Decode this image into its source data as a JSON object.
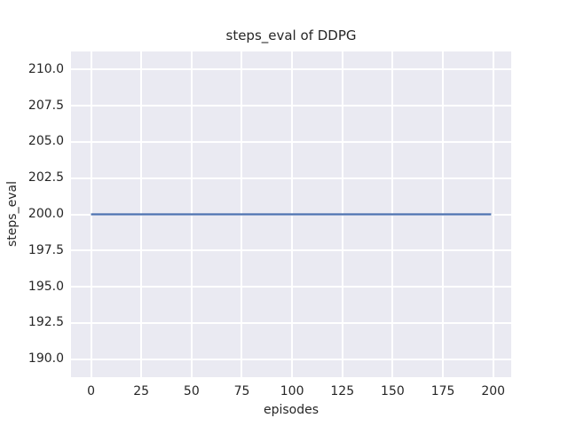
{
  "chart_data": {
    "type": "line",
    "title": "steps_eval of DDPG",
    "xlabel": "episodes",
    "ylabel": "steps_eval",
    "xlim": [
      -9.95,
      208.95
    ],
    "ylim": [
      188.75,
      211.25
    ],
    "x_ticks": [
      0,
      25,
      50,
      75,
      100,
      125,
      150,
      175,
      200
    ],
    "x_tick_labels": [
      "0",
      "25",
      "50",
      "75",
      "100",
      "125",
      "150",
      "175",
      "200"
    ],
    "y_ticks": [
      190.0,
      192.5,
      195.0,
      197.5,
      200.0,
      202.5,
      205.0,
      207.5,
      210.0
    ],
    "y_tick_labels": [
      "190.0",
      "192.5",
      "195.0",
      "197.5",
      "200.0",
      "202.5",
      "205.0",
      "207.5",
      "210.0"
    ],
    "grid": true,
    "legend": false,
    "series": [
      {
        "name": "steps_eval",
        "x": [
          0,
          199
        ],
        "y": [
          200.0,
          200.0
        ]
      }
    ],
    "colors": {
      "line": "#4C72B0",
      "plot_background": "#EAEAF2",
      "gridline": "#FFFFFF",
      "text": "#262626",
      "figure_background": "#FFFFFF"
    }
  }
}
